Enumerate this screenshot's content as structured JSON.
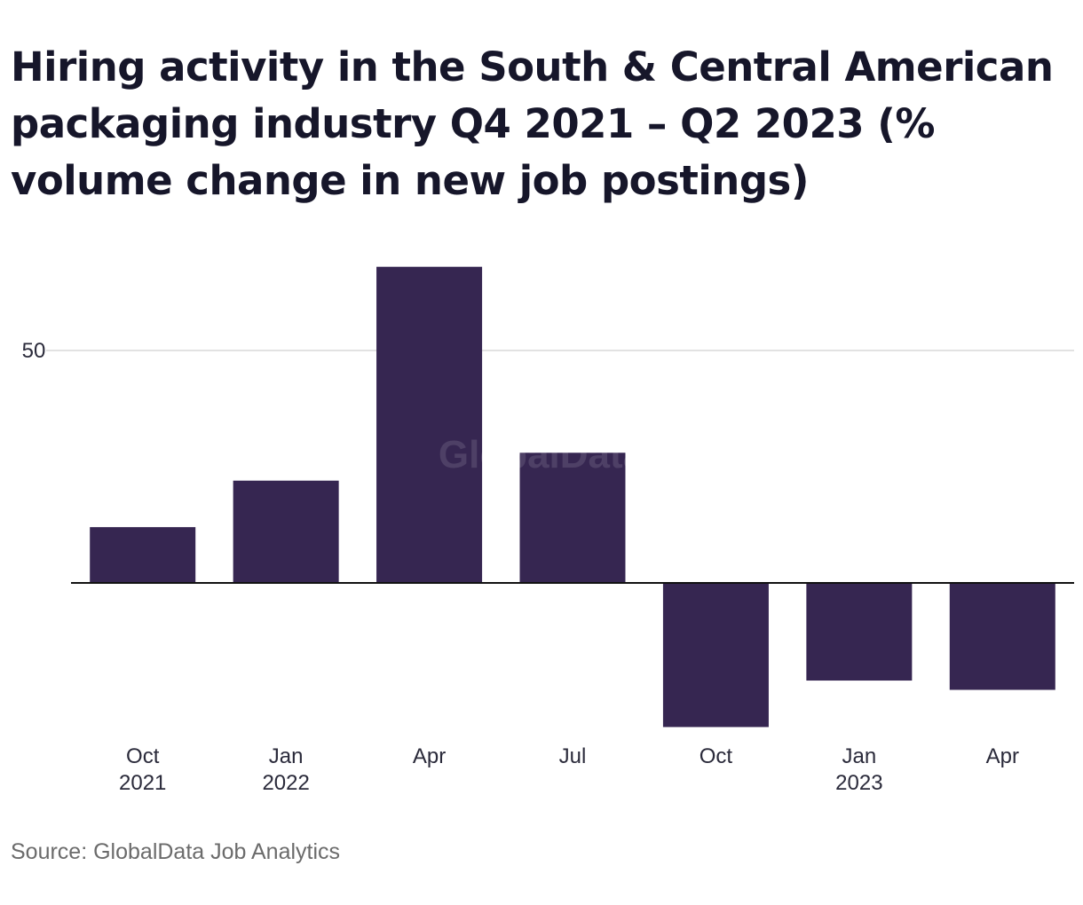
{
  "chart_data": {
    "type": "bar",
    "title": "Hiring activity in the South & Central American packaging industry Q4 2021 – Q2 2023 (% volume change in new job postings)",
    "xlabel": "",
    "ylabel": "",
    "categories": [
      "Oct 2021",
      "Jan 2022",
      "Apr",
      "Jul",
      "Oct",
      "Jan 2023",
      "Apr"
    ],
    "category_lines": [
      [
        "Oct",
        "2021"
      ],
      [
        "Jan",
        "2022"
      ],
      [
        "Apr"
      ],
      [
        "Jul"
      ],
      [
        "Oct"
      ],
      [
        "Jan",
        "2023"
      ],
      [
        "Apr"
      ]
    ],
    "values": [
      12,
      22,
      68,
      28,
      -31,
      -21,
      -23
    ],
    "yticks": [
      50
    ],
    "ylim": [
      -35,
      70
    ],
    "grid": true,
    "legend": "none",
    "bar_color": "#362651",
    "grid_color": "#d9d9d9",
    "zero_line_color": "#111111",
    "watermark": "GlobalData",
    "source": "Source: GlobalData Job Analytics"
  }
}
